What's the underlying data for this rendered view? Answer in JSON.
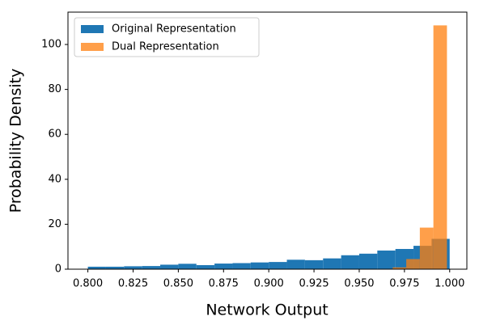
{
  "chart_data": {
    "type": "histogram",
    "xlabel": "Network Output",
    "ylabel": "Probability Density",
    "xlim": [
      0.789,
      1.0095
    ],
    "ylim": [
      0,
      114.4
    ],
    "xticks": [
      {
        "value": 0.8,
        "label": "0.800"
      },
      {
        "value": 0.825,
        "label": "0.825"
      },
      {
        "value": 0.85,
        "label": "0.850"
      },
      {
        "value": 0.875,
        "label": "0.875"
      },
      {
        "value": 0.9,
        "label": "0.900"
      },
      {
        "value": 0.925,
        "label": "0.925"
      },
      {
        "value": 0.95,
        "label": "0.950"
      },
      {
        "value": 0.975,
        "label": "0.975"
      },
      {
        "value": 1.0,
        "label": "1.000"
      }
    ],
    "yticks": [
      0,
      20,
      40,
      60,
      80,
      100
    ],
    "legend": "upper left",
    "series": [
      {
        "name": "Original Representation",
        "color": "#1f77b4",
        "opacity": 1,
        "bins": [
          0.8,
          0.81,
          0.82,
          0.83,
          0.84,
          0.85,
          0.86,
          0.87,
          0.88,
          0.89,
          0.9,
          0.91,
          0.92,
          0.93,
          0.94,
          0.95,
          0.96,
          0.97,
          0.98,
          0.99,
          1.0
        ],
        "values": [
          1.1,
          1.1,
          1.3,
          1.4,
          2.0,
          2.4,
          1.8,
          2.5,
          2.7,
          3.0,
          3.2,
          4.2,
          4.0,
          4.8,
          6.2,
          6.9,
          8.3,
          9.0,
          10.4,
          13.5
        ]
      },
      {
        "name": "Dual Representation",
        "color": "#ff7f0e",
        "opacity": 0.75,
        "bins": [
          0.9685,
          0.976,
          0.9835,
          0.991,
          0.9985
        ],
        "values": [
          0.8,
          4.5,
          18.5,
          108.5
        ]
      }
    ]
  }
}
